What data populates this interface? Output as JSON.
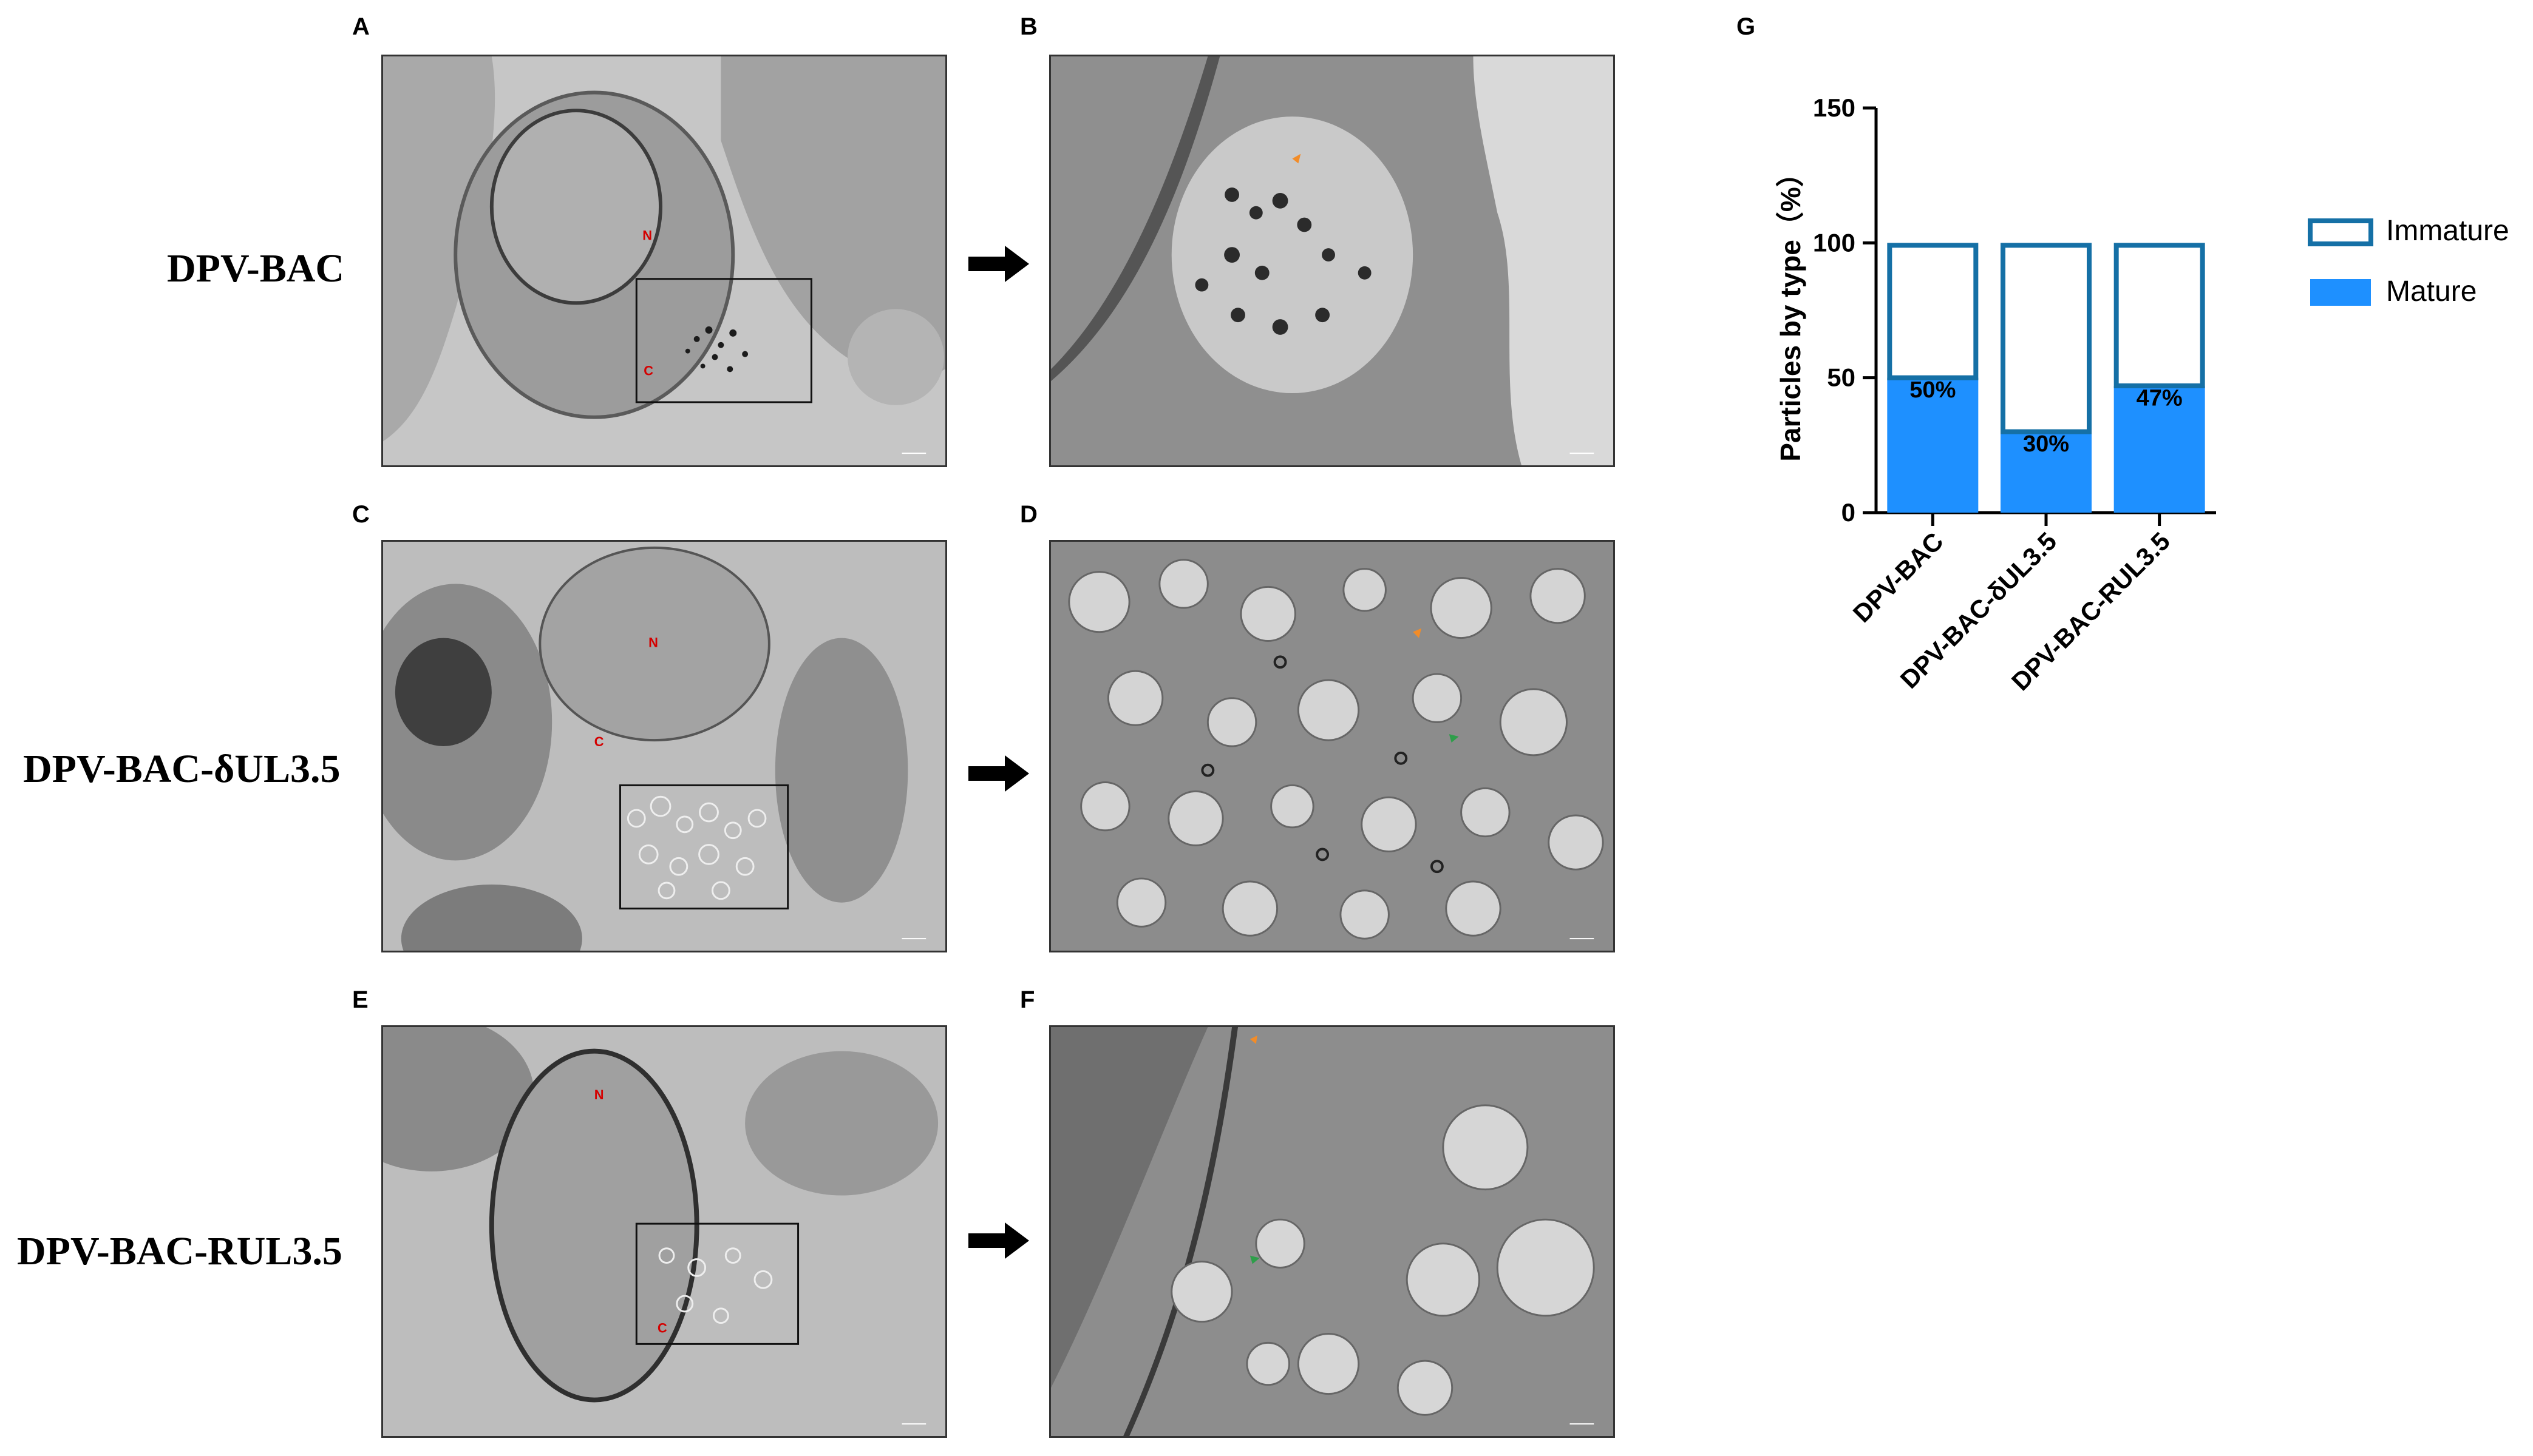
{
  "panels": {
    "A": "A",
    "B": "B",
    "C": "C",
    "D": "D",
    "E": "E",
    "F": "F",
    "G": "G"
  },
  "rows": {
    "row1": "DPV-BAC",
    "row2": "DPV-BAC-δUL3.5",
    "row3": "DPV-BAC-RUL3.5"
  },
  "em_labels": {
    "nucleus": "N",
    "cytoplasm": "C"
  },
  "colors": {
    "mature": "#1E90FF",
    "immature_border": "#1570A6",
    "em_label": "#d40000",
    "orange_arrowhead": "#F28C28",
    "green_arrowhead": "#2E9E4A"
  },
  "chart_data": {
    "type": "bar",
    "stacked": true,
    "categories": [
      "DPV-BAC",
      "DPV-BAC-δUL3.5",
      "DPV-BAC-RUL3.5"
    ],
    "series": [
      {
        "name": "Mature",
        "values": [
          50,
          30,
          47
        ],
        "color": "#1E90FF"
      },
      {
        "name": "Immature",
        "values": [
          50,
          70,
          53
        ],
        "color": "#ffffff",
        "border": "#1570A6"
      }
    ],
    "data_labels": [
      "50%",
      "30%",
      "47%"
    ],
    "ylabel": "Particles by type（%）",
    "xlabel": "",
    "ylim": [
      0,
      150
    ],
    "yticks": [
      0,
      50,
      100,
      150
    ],
    "legend": [
      "Immature",
      "Mature"
    ],
    "legend_position": "right",
    "grid": false
  }
}
